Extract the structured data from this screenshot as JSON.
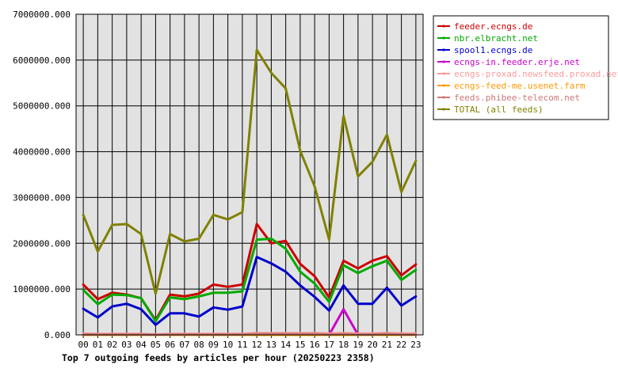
{
  "colors": {
    "plot_bg": "#e2e2e2",
    "grid": "#000000",
    "axis": "#000000"
  },
  "chart_data": {
    "type": "line",
    "title": "Top 7 outgoing feeds by articles per hour (20250223 2358)",
    "xlabel": "",
    "ylabel": "",
    "categories": [
      "00",
      "01",
      "02",
      "03",
      "04",
      "05",
      "06",
      "07",
      "08",
      "09",
      "10",
      "11",
      "12",
      "13",
      "14",
      "15",
      "16",
      "17",
      "18",
      "19",
      "20",
      "21",
      "22",
      "23"
    ],
    "y_ticks": [
      "0.000",
      "1000000.000",
      "2000000.000",
      "3000000.000",
      "4000000.000",
      "5000000.000",
      "6000000.000",
      "7000000.000"
    ],
    "ylim": [
      0,
      7000000
    ],
    "grid": true,
    "legend_position": "right",
    "series": [
      {
        "name": "feeder.ecngs.de",
        "color": "#cc0000",
        "values": [
          1100000,
          780000,
          920000,
          880000,
          800000,
          320000,
          880000,
          840000,
          900000,
          1100000,
          1050000,
          1100000,
          2420000,
          2000000,
          2050000,
          1550000,
          1280000,
          820000,
          1620000,
          1450000,
          1620000,
          1720000,
          1300000,
          1540000
        ]
      },
      {
        "name": "nbr.elbracht.net",
        "color": "#00aa00",
        "values": [
          980000,
          670000,
          880000,
          870000,
          800000,
          300000,
          820000,
          780000,
          840000,
          920000,
          920000,
          950000,
          2080000,
          2100000,
          1880000,
          1380000,
          1120000,
          720000,
          1520000,
          1350000,
          1500000,
          1620000,
          1200000,
          1420000
        ]
      },
      {
        "name": "spool1.ecngs.de",
        "color": "#0000cc",
        "values": [
          570000,
          380000,
          620000,
          680000,
          560000,
          220000,
          470000,
          470000,
          400000,
          600000,
          550000,
          620000,
          1700000,
          1560000,
          1380000,
          1080000,
          830000,
          530000,
          1080000,
          680000,
          680000,
          1030000,
          640000,
          840000
        ]
      },
      {
        "name": "ecngs-in.feeder.erje.net",
        "color": "#cc00cc",
        "values": [
          0,
          0,
          0,
          0,
          0,
          0,
          0,
          0,
          0,
          0,
          0,
          0,
          0,
          0,
          0,
          0,
          0,
          0,
          560000,
          0,
          0,
          0,
          0,
          0
        ]
      },
      {
        "name": "ecngs-proxad.newsfeed.proxad.net",
        "color": "#ff9a9a",
        "values": [
          30000,
          20000,
          20000,
          20000,
          20000,
          10000,
          20000,
          20000,
          20000,
          20000,
          20000,
          20000,
          40000,
          40000,
          40000,
          40000,
          40000,
          30000,
          40000,
          30000,
          30000,
          40000,
          30000,
          30000
        ]
      },
      {
        "name": "ecngs-feed-me.usenet.farm",
        "color": "#ff9900",
        "values": [
          0,
          0,
          0,
          0,
          0,
          0,
          0,
          0,
          0,
          0,
          0,
          0,
          0,
          0,
          0,
          0,
          0,
          0,
          0,
          0,
          0,
          0,
          0,
          0
        ]
      },
      {
        "name": "feeds.phibee-telecom.net",
        "color": "#cc7777",
        "values": [
          10000,
          10000,
          10000,
          10000,
          10000,
          5000,
          10000,
          10000,
          10000,
          10000,
          10000,
          10000,
          20000,
          20000,
          20000,
          20000,
          20000,
          10000,
          20000,
          10000,
          10000,
          20000,
          10000,
          10000
        ]
      },
      {
        "name": "TOTAL (all feeds)",
        "color": "#808000",
        "values": [
          2620000,
          1820000,
          2400000,
          2420000,
          2200000,
          900000,
          2200000,
          2040000,
          2100000,
          2620000,
          2520000,
          2680000,
          6220000,
          5720000,
          5380000,
          4020000,
          3240000,
          2080000,
          4780000,
          3460000,
          3780000,
          4370000,
          3120000,
          3800000
        ]
      }
    ]
  }
}
